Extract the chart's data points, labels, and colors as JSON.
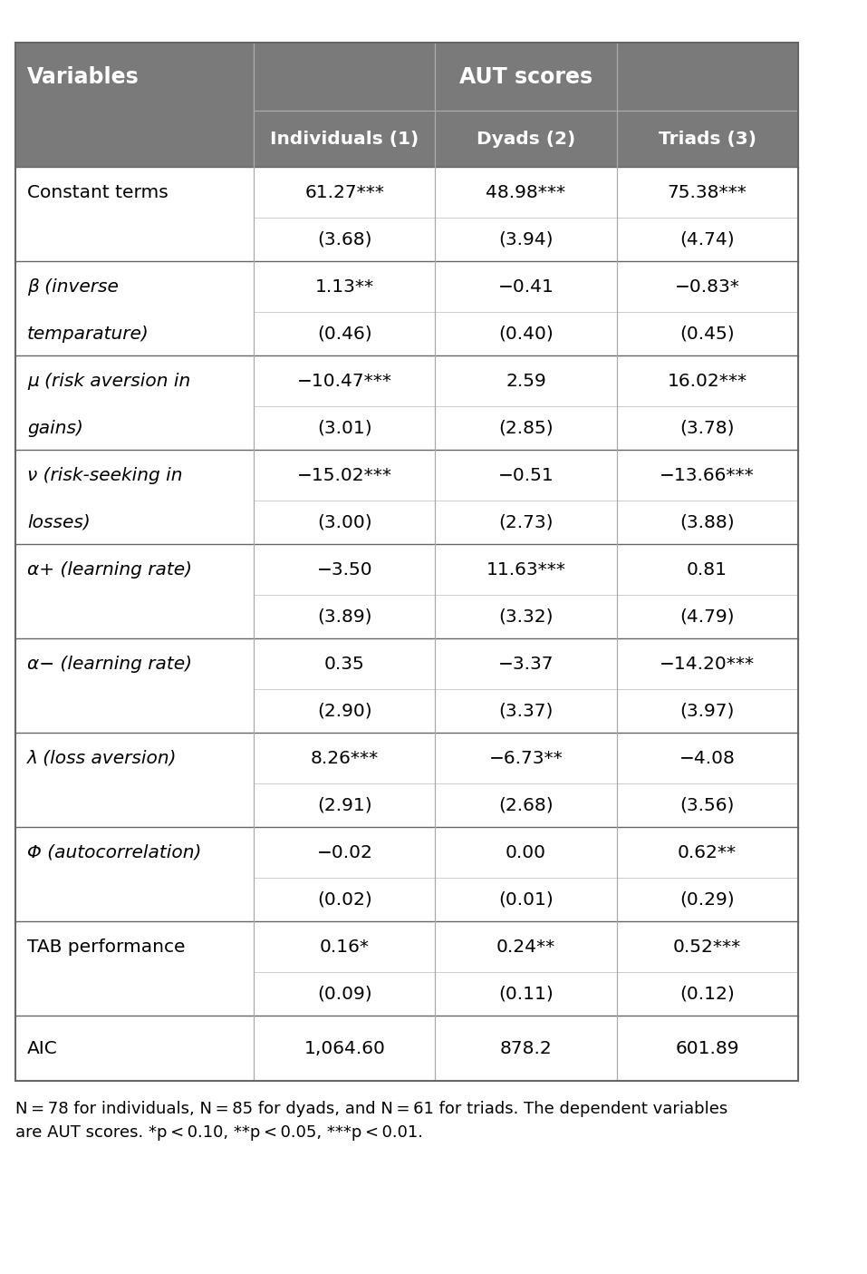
{
  "header_bg": "#7a7a7a",
  "header_bg2": "#7a7a7a",
  "header_text_color": "#ffffff",
  "body_bg": "#ffffff",
  "body_text_color": "#000000",
  "line_color": "#aaaaaa",
  "outer_border_color": "#555555",
  "col_header1": "Variables",
  "col_header_span": "AUT scores",
  "col_header2": "Individuals (1)",
  "col_header3": "Dyads (2)",
  "col_header4": "Triads (3)",
  "rows": [
    {
      "var": "Constant terms",
      "var2": "",
      "c1": "61.27***",
      "c2": "48.98***",
      "c3": "75.38***",
      "se1": "(3.68)",
      "se2": "(3.94)",
      "se3": "(4.74)"
    },
    {
      "var": "β (inverse",
      "var2": "temparature)",
      "c1": "1.13**",
      "c2": "−0.41",
      "c3": "−0.83*",
      "se1": "(0.46)",
      "se2": "(0.40)",
      "se3": "(0.45)"
    },
    {
      "var": "μ (risk aversion in",
      "var2": "gains)",
      "c1": "−10.47***",
      "c2": "2.59",
      "c3": "16.02***",
      "se1": "(3.01)",
      "se2": "(2.85)",
      "se3": "(3.78)"
    },
    {
      "var": "ν (risk-seeking in",
      "var2": "losses)",
      "c1": "−15.02***",
      "c2": "−0.51",
      "c3": "−13.66***",
      "se1": "(3.00)",
      "se2": "(2.73)",
      "se3": "(3.88)"
    },
    {
      "var": "α+ (learning rate)",
      "var2": "",
      "c1": "−3.50",
      "c2": "11.63***",
      "c3": "0.81",
      "se1": "(3.89)",
      "se2": "(3.32)",
      "se3": "(4.79)"
    },
    {
      "var": "α− (learning rate)",
      "var2": "",
      "c1": "0.35",
      "c2": "−3.37",
      "c3": "−14.20***",
      "se1": "(2.90)",
      "se2": "(3.37)",
      "se3": "(3.97)"
    },
    {
      "var": "λ (loss aversion)",
      "var2": "",
      "c1": "8.26***",
      "c2": "−6.73**",
      "c3": "−4.08",
      "se1": "(2.91)",
      "se2": "(2.68)",
      "se3": "(3.56)"
    },
    {
      "var": "Φ (autocorrelation)",
      "var2": "",
      "c1": "−0.02",
      "c2": "0.00",
      "c3": "0.62**",
      "se1": "(0.02)",
      "se2": "(0.01)",
      "se3": "(0.29)"
    },
    {
      "var": "TAB performance",
      "var2": "",
      "c1": "0.16*",
      "c2": "0.24**",
      "c3": "0.52***",
      "se1": "(0.09)",
      "se2": "(0.11)",
      "se3": "(0.12)"
    },
    {
      "var": "AIC",
      "var2": null,
      "c1": "1,064.60",
      "c2": "878.2",
      "c3": "601.89",
      "se1": null,
      "se2": null,
      "se3": null
    }
  ],
  "footnote_parts": [
    {
      "text": "N",
      "italic": true
    },
    {
      "text": " = 78 for individuals, ",
      "italic": false
    },
    {
      "text": "N",
      "italic": true
    },
    {
      "text": " = 85 for dyads, and ",
      "italic": false
    },
    {
      "text": "N",
      "italic": true
    },
    {
      "text": " = 61 for triads. The dependent variables are AUT scores. *",
      "italic": false
    },
    {
      "text": "p",
      "italic": true
    },
    {
      "text": " < 0.10, **",
      "italic": false
    },
    {
      "text": "p",
      "italic": true
    },
    {
      "text": " < 0.05, ***",
      "italic": false
    },
    {
      "text": "p",
      "italic": true
    },
    {
      "text": " < 0.01.",
      "italic": false
    }
  ]
}
